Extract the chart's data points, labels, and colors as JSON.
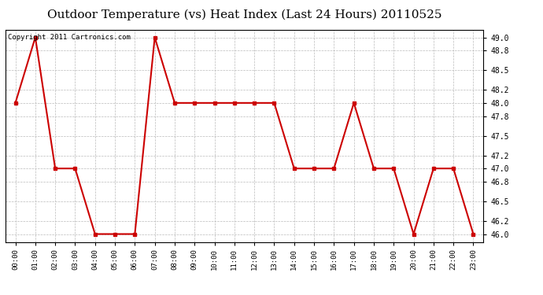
{
  "title": "Outdoor Temperature (vs) Heat Index (Last 24 Hours) 20110525",
  "copyright_text": "Copyright 2011 Cartronics.com",
  "x_labels": [
    "00:00",
    "01:00",
    "02:00",
    "03:00",
    "04:00",
    "05:00",
    "06:00",
    "07:00",
    "08:00",
    "09:00",
    "10:00",
    "11:00",
    "12:00",
    "13:00",
    "14:00",
    "15:00",
    "16:00",
    "17:00",
    "18:00",
    "19:00",
    "20:00",
    "21:00",
    "22:00",
    "23:00"
  ],
  "y_values": [
    48.0,
    49.0,
    47.0,
    47.0,
    46.0,
    46.0,
    46.0,
    49.0,
    48.0,
    48.0,
    48.0,
    48.0,
    48.0,
    48.0,
    47.0,
    47.0,
    47.0,
    48.0,
    47.0,
    47.0,
    46.0,
    47.0,
    47.0,
    46.0
  ],
  "line_color": "#cc0000",
  "marker": "s",
  "marker_size": 3,
  "ylim": [
    45.88,
    49.12
  ],
  "yticks": [
    46.0,
    46.2,
    46.5,
    46.8,
    47.0,
    47.2,
    47.5,
    47.8,
    48.0,
    48.2,
    48.5,
    48.8,
    49.0
  ],
  "background_color": "#ffffff",
  "plot_bg_color": "#ffffff",
  "grid_color": "#bbbbbb",
  "title_fontsize": 11,
  "copyright_fontsize": 6.5
}
